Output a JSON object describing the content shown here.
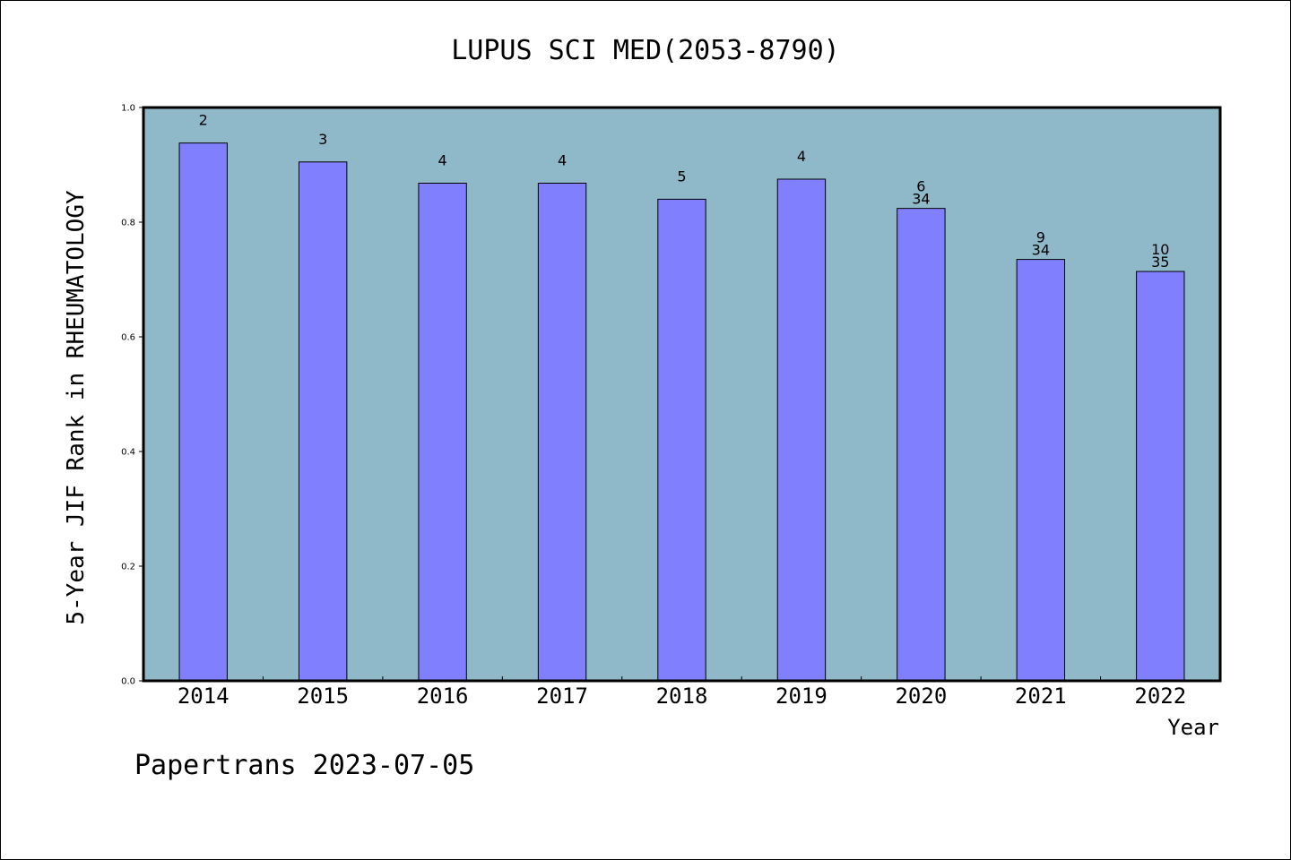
{
  "footer": "Papertrans 2023-07-05",
  "chart_data": {
    "type": "bar",
    "title": "LUPUS SCI MED(2053-8790)",
    "xlabel": "Year",
    "ylabel": "5-Year JIF Rank in RHEUMATOLOGY",
    "ylim": [
      0,
      1.0
    ],
    "yticks": [
      "0.0",
      "0.2",
      "0.4",
      "0.6",
      "0.8",
      "1.0"
    ],
    "categories": [
      "2014",
      "2015",
      "2016",
      "2017",
      "2018",
      "2019",
      "2020",
      "2021",
      "2022"
    ],
    "values": [
      0.938,
      0.905,
      0.868,
      0.868,
      0.84,
      0.875,
      0.824,
      0.735,
      0.714
    ],
    "rank_labels": [
      "2",
      "3",
      "4",
      "4",
      "5",
      "4",
      "6",
      "9",
      "10"
    ],
    "total_labels": [
      "",
      "",
      "",
      "",
      "",
      "",
      "34",
      "34",
      "35"
    ],
    "grid": false,
    "colors": {
      "plot_bg": "#8fb8c8",
      "bar": "#8080ff",
      "bar_edge": "#000000"
    }
  }
}
